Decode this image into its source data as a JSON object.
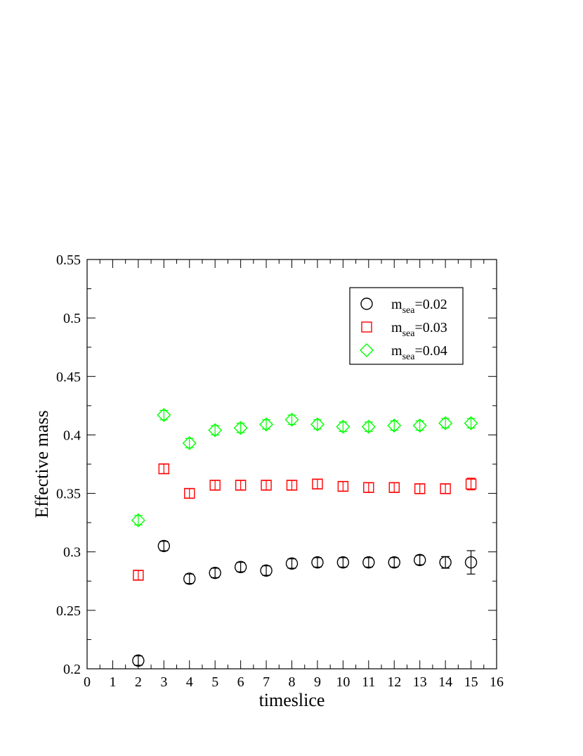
{
  "chart_data": {
    "type": "scatter",
    "xlabel": "timeslice",
    "ylabel": "Effective mass",
    "xlim": [
      0,
      16
    ],
    "ylim": [
      0.2,
      0.55
    ],
    "x_ticks": [
      0,
      1,
      2,
      3,
      4,
      5,
      6,
      7,
      8,
      9,
      10,
      11,
      12,
      13,
      14,
      15,
      16
    ],
    "x_tick_labels": [
      "0",
      "1",
      "2",
      "3",
      "4",
      "5",
      "6",
      "7",
      "8",
      "9",
      "10",
      "11",
      "12",
      "13",
      "14",
      "15",
      "16"
    ],
    "y_ticks": [
      0.2,
      0.25,
      0.3,
      0.35,
      0.4,
      0.45,
      0.5,
      0.55
    ],
    "y_tick_labels": [
      "0.2",
      "0.25",
      "0.3",
      "0.35",
      "0.4",
      "0.45",
      "0.5",
      "0.55"
    ],
    "grid": false,
    "legend_position": "top-right",
    "series": [
      {
        "name": "m_sea=0.02",
        "legend_main": "m",
        "legend_sub": "sea",
        "legend_value": "=0.02",
        "marker": "circle",
        "color": "#000000",
        "x": [
          2,
          3,
          4,
          5,
          6,
          7,
          8,
          9,
          10,
          11,
          12,
          13,
          14,
          15
        ],
        "y": [
          0.207,
          0.305,
          0.277,
          0.282,
          0.287,
          0.284,
          0.29,
          0.291,
          0.291,
          0.291,
          0.291,
          0.293,
          0.291,
          0.291
        ],
        "err": [
          0.004,
          0.004,
          0.004,
          0.004,
          0.004,
          0.004,
          0.004,
          0.004,
          0.004,
          0.004,
          0.004,
          0.004,
          0.005,
          0.01
        ]
      },
      {
        "name": "m_sea=0.03",
        "legend_main": "m",
        "legend_sub": "sea",
        "legend_value": "=0.03",
        "marker": "square",
        "color": "#ff0000",
        "x": [
          2,
          3,
          4,
          5,
          6,
          7,
          8,
          9,
          10,
          11,
          12,
          13,
          14,
          15
        ],
        "y": [
          0.28,
          0.371,
          0.35,
          0.357,
          0.357,
          0.357,
          0.357,
          0.358,
          0.356,
          0.355,
          0.355,
          0.354,
          0.354,
          0.358
        ],
        "err": [
          0.004,
          0.004,
          0.004,
          0.004,
          0.004,
          0.004,
          0.004,
          0.004,
          0.004,
          0.004,
          0.004,
          0.004,
          0.004,
          0.005
        ]
      },
      {
        "name": "m_sea=0.04",
        "legend_main": "m",
        "legend_sub": "sea",
        "legend_value": "=0.04",
        "marker": "diamond",
        "color": "#00ff00",
        "x": [
          2,
          3,
          4,
          5,
          6,
          7,
          8,
          9,
          10,
          11,
          12,
          13,
          14,
          15
        ],
        "y": [
          0.327,
          0.417,
          0.393,
          0.404,
          0.406,
          0.409,
          0.413,
          0.409,
          0.407,
          0.407,
          0.408,
          0.408,
          0.41,
          0.41
        ],
        "err": [
          0.004,
          0.004,
          0.004,
          0.004,
          0.004,
          0.004,
          0.004,
          0.004,
          0.004,
          0.004,
          0.004,
          0.004,
          0.004,
          0.004
        ]
      }
    ]
  }
}
